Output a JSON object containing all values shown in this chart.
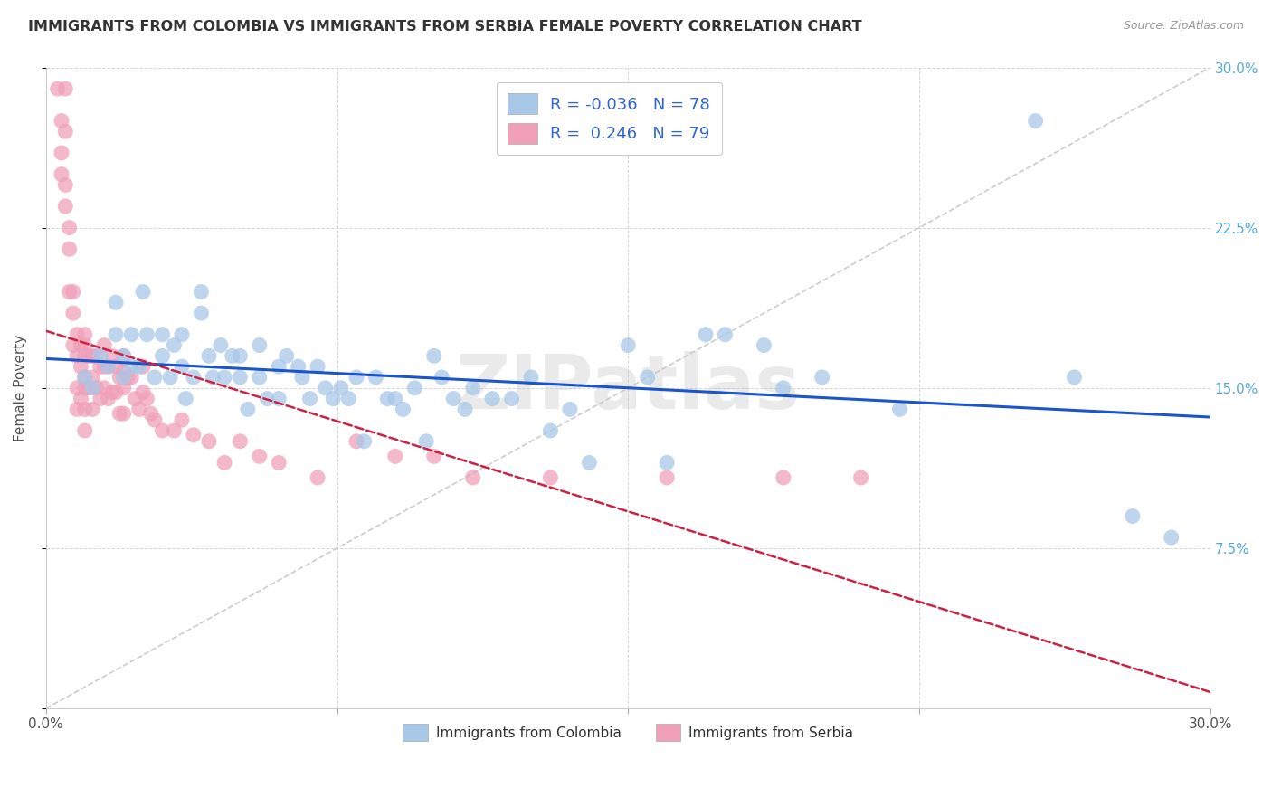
{
  "title": "IMMIGRANTS FROM COLOMBIA VS IMMIGRANTS FROM SERBIA FEMALE POVERTY CORRELATION CHART",
  "source": "Source: ZipAtlas.com",
  "ylabel": "Female Poverty",
  "xlim": [
    0.0,
    0.3
  ],
  "ylim": [
    0.0,
    0.3
  ],
  "colombia_color": "#a8c8e8",
  "serbia_color": "#f0a0b8",
  "colombia_R": -0.036,
  "colombia_N": 78,
  "serbia_R": 0.246,
  "serbia_N": 79,
  "trendline_colombia_color": "#1a55cc",
  "trendline_serbia_color": "#cc2244",
  "watermark": "ZIPatlas",
  "colombia_scatter_x": [
    0.01,
    0.012,
    0.014,
    0.016,
    0.018,
    0.018,
    0.02,
    0.02,
    0.022,
    0.022,
    0.024,
    0.025,
    0.026,
    0.028,
    0.03,
    0.03,
    0.032,
    0.033,
    0.035,
    0.035,
    0.036,
    0.038,
    0.04,
    0.04,
    0.042,
    0.043,
    0.045,
    0.046,
    0.048,
    0.05,
    0.05,
    0.052,
    0.055,
    0.055,
    0.057,
    0.06,
    0.06,
    0.062,
    0.065,
    0.066,
    0.068,
    0.07,
    0.072,
    0.074,
    0.076,
    0.078,
    0.08,
    0.082,
    0.085,
    0.088,
    0.09,
    0.092,
    0.095,
    0.098,
    0.1,
    0.102,
    0.105,
    0.108,
    0.11,
    0.115,
    0.12,
    0.125,
    0.13,
    0.135,
    0.14,
    0.15,
    0.155,
    0.16,
    0.17,
    0.175,
    0.185,
    0.19,
    0.2,
    0.22,
    0.255,
    0.265,
    0.28,
    0.29
  ],
  "colombia_scatter_y": [
    0.155,
    0.15,
    0.165,
    0.16,
    0.175,
    0.19,
    0.165,
    0.155,
    0.175,
    0.16,
    0.16,
    0.195,
    0.175,
    0.155,
    0.175,
    0.165,
    0.155,
    0.17,
    0.175,
    0.16,
    0.145,
    0.155,
    0.185,
    0.195,
    0.165,
    0.155,
    0.17,
    0.155,
    0.165,
    0.165,
    0.155,
    0.14,
    0.17,
    0.155,
    0.145,
    0.16,
    0.145,
    0.165,
    0.16,
    0.155,
    0.145,
    0.16,
    0.15,
    0.145,
    0.15,
    0.145,
    0.155,
    0.125,
    0.155,
    0.145,
    0.145,
    0.14,
    0.15,
    0.125,
    0.165,
    0.155,
    0.145,
    0.14,
    0.15,
    0.145,
    0.145,
    0.155,
    0.13,
    0.14,
    0.115,
    0.17,
    0.155,
    0.115,
    0.175,
    0.175,
    0.17,
    0.15,
    0.155,
    0.14,
    0.275,
    0.155,
    0.09,
    0.08
  ],
  "serbia_scatter_x": [
    0.003,
    0.004,
    0.004,
    0.004,
    0.005,
    0.005,
    0.005,
    0.005,
    0.006,
    0.006,
    0.006,
    0.007,
    0.007,
    0.007,
    0.008,
    0.008,
    0.008,
    0.008,
    0.009,
    0.009,
    0.009,
    0.01,
    0.01,
    0.01,
    0.01,
    0.01,
    0.01,
    0.01,
    0.011,
    0.011,
    0.012,
    0.012,
    0.012,
    0.013,
    0.013,
    0.014,
    0.014,
    0.015,
    0.015,
    0.015,
    0.016,
    0.016,
    0.017,
    0.017,
    0.018,
    0.018,
    0.019,
    0.019,
    0.02,
    0.02,
    0.02,
    0.02,
    0.021,
    0.022,
    0.023,
    0.024,
    0.025,
    0.025,
    0.026,
    0.027,
    0.028,
    0.03,
    0.033,
    0.035,
    0.038,
    0.042,
    0.046,
    0.05,
    0.055,
    0.06,
    0.07,
    0.08,
    0.09,
    0.1,
    0.11,
    0.13,
    0.16,
    0.19,
    0.21
  ],
  "serbia_scatter_y": [
    0.29,
    0.275,
    0.26,
    0.25,
    0.29,
    0.27,
    0.245,
    0.235,
    0.225,
    0.215,
    0.195,
    0.195,
    0.185,
    0.17,
    0.175,
    0.165,
    0.15,
    0.14,
    0.17,
    0.16,
    0.145,
    0.175,
    0.17,
    0.165,
    0.155,
    0.15,
    0.14,
    0.13,
    0.165,
    0.15,
    0.165,
    0.155,
    0.14,
    0.165,
    0.15,
    0.16,
    0.145,
    0.17,
    0.16,
    0.15,
    0.16,
    0.145,
    0.165,
    0.148,
    0.16,
    0.148,
    0.155,
    0.138,
    0.165,
    0.158,
    0.15,
    0.138,
    0.155,
    0.155,
    0.145,
    0.14,
    0.16,
    0.148,
    0.145,
    0.138,
    0.135,
    0.13,
    0.13,
    0.135,
    0.128,
    0.125,
    0.115,
    0.125,
    0.118,
    0.115,
    0.108,
    0.125,
    0.118,
    0.118,
    0.108,
    0.108,
    0.108,
    0.108,
    0.108
  ]
}
